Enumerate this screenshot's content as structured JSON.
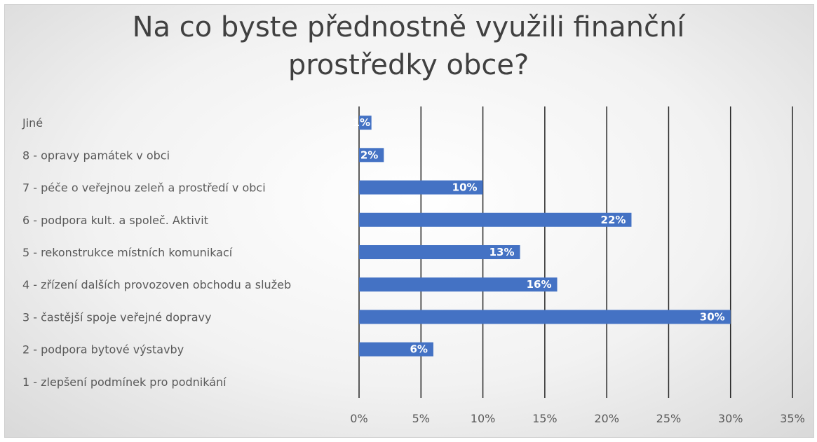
{
  "chart_data": {
    "type": "bar",
    "orientation": "horizontal",
    "title": "Na co byste přednostně využili finanční prostředky obce?",
    "title_lines": [
      "Na co byste přednostně využili finanční",
      "prostředky obce?"
    ],
    "categories": [
      "Jiné",
      "8 - opravy památek v obci",
      "7 - péče o veřejnou zeleň a prostředí v obci",
      "6 - podpora kult. a společ. Aktivit",
      "5 - rekonstrukce místních komunikací",
      "4 - zřízení dalších provozoven obchodu a služeb",
      "3 - častější spoje veřejné dopravy",
      "2 - podpora bytové výstavby",
      "1 - zlepšení podmínek pro podnikání"
    ],
    "values": [
      1,
      2,
      10,
      22,
      13,
      16,
      30,
      6,
      0
    ],
    "data_labels": [
      "1%",
      "2%",
      "10%",
      "22%",
      "13%",
      "16%",
      "30%",
      "6%",
      ""
    ],
    "xlim": [
      0,
      35
    ],
    "x_ticks": [
      0,
      5,
      10,
      15,
      20,
      25,
      30,
      35
    ],
    "x_tick_labels": [
      "0%",
      "5%",
      "10%",
      "15%",
      "20%",
      "25%",
      "30%",
      "35%"
    ],
    "grid": "vertical",
    "legend": "none",
    "bar_color": "#4472c4",
    "gridline_color": "#262626",
    "background_color": "#f2f2f2"
  }
}
